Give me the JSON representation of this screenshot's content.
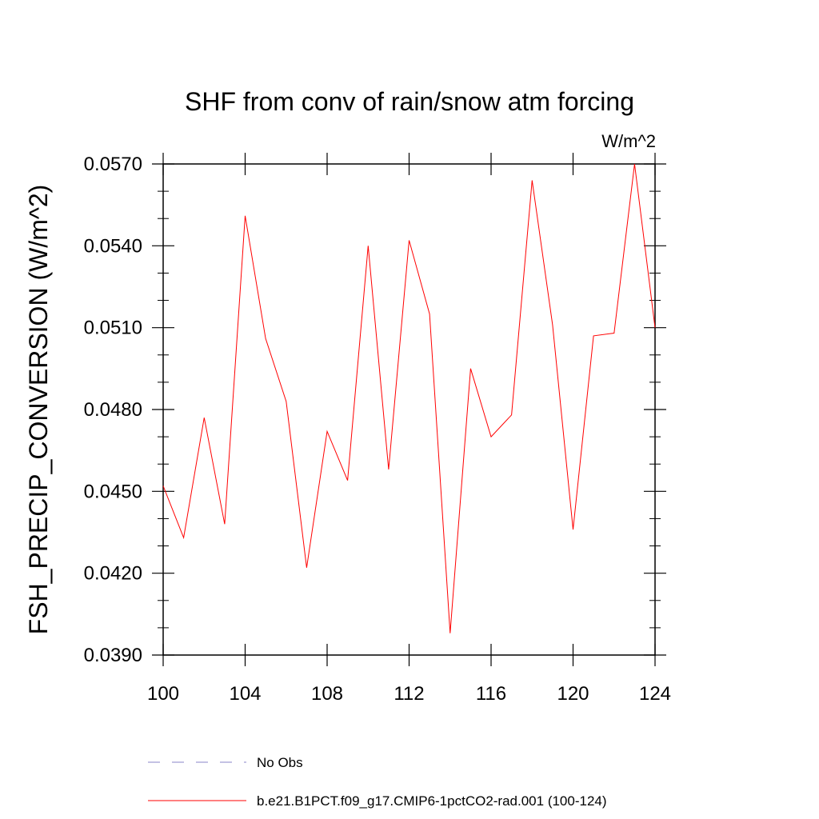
{
  "chart_data": {
    "type": "line",
    "title": "SHF from conv of rain/snow atm forcing",
    "units_label": "W/m^2",
    "ylabel": "FSH_PRECIP_CONVERSION  (W/m^2)",
    "xlabel": "",
    "xlim": [
      100,
      124
    ],
    "ylim": [
      0.039,
      0.057
    ],
    "x_ticks": [
      100,
      104,
      108,
      112,
      116,
      120,
      124
    ],
    "x_tick_labels": [
      "100",
      "104",
      "108",
      "112",
      "116",
      "120",
      "124"
    ],
    "y_ticks": [
      0.039,
      0.042,
      0.045,
      0.048,
      0.051,
      0.054,
      0.057
    ],
    "y_tick_labels": [
      "0.0390",
      "0.0420",
      "0.0450",
      "0.0480",
      "0.0510",
      "0.0540",
      "0.0570"
    ],
    "grid": false,
    "legend_position": "bottom",
    "series": [
      {
        "name": "b.e21.B1PCT.f09_g17.CMIP6-1pctCO2-rad.001 (100-124)",
        "color": "#ff0000",
        "style": "solid",
        "x": [
          100,
          101,
          102,
          103,
          104,
          105,
          106,
          107,
          108,
          109,
          110,
          111,
          112,
          113,
          114,
          115,
          116,
          117,
          118,
          119,
          120,
          121,
          122,
          123,
          124
        ],
        "values": [
          0.0452,
          0.0433,
          0.0477,
          0.0438,
          0.0551,
          0.0506,
          0.0483,
          0.0422,
          0.0472,
          0.0454,
          0.054,
          0.0458,
          0.0542,
          0.0515,
          0.0398,
          0.0495,
          0.047,
          0.0478,
          0.0564,
          0.0511,
          0.0436,
          0.0507,
          0.0508,
          0.057,
          0.051
        ]
      }
    ],
    "legend": [
      {
        "label": "No Obs",
        "color": "#8a84c8",
        "style": "dashed"
      },
      {
        "label": "b.e21.B1PCT.f09_g17.CMIP6-1pctCO2-rad.001 (100-124)",
        "color": "#ff0000",
        "style": "solid"
      }
    ]
  }
}
